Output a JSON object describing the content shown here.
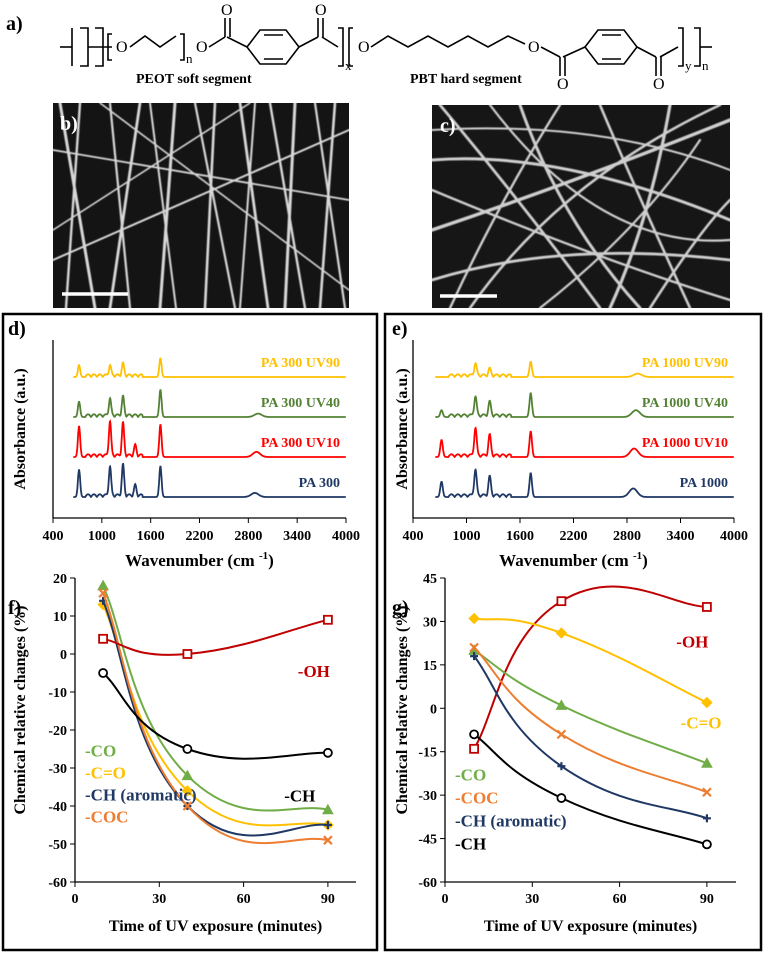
{
  "panel_a": {
    "label": "a)",
    "soft_segment_label": "PEOT soft segment",
    "hard_segment_label": "PBT hard segment",
    "atom_O": "O",
    "sub_n": "n",
    "sub_x": "x",
    "sub_y": "y"
  },
  "panel_b": {
    "label": "b)"
  },
  "panel_c": {
    "label": "c)"
  },
  "chart_data": [
    {
      "id": "d",
      "label": "d)",
      "type": "line",
      "title": "",
      "xlabel": "Wavenumber (cm",
      "xlabel_sup": "-1",
      "xlabel_end": ")",
      "ylabel": "Absorbance (a.u.)",
      "xlim": [
        400,
        4000
      ],
      "xticks": [
        "400",
        "1000",
        "1600",
        "2200",
        "2800",
        "3400",
        "4000"
      ],
      "series": [
        {
          "name": "PA 300 UV90",
          "color": "#FFC000",
          "peaks": [
            [
              720,
              0.35
            ],
            [
              1100,
              0.3
            ],
            [
              1260,
              0.35
            ],
            [
              1720,
              0.55
            ]
          ]
        },
        {
          "name": "PA 300 UV40",
          "color": "#548235",
          "peaks": [
            [
              720,
              0.45
            ],
            [
              1100,
              0.5
            ],
            [
              1260,
              0.55
            ],
            [
              1720,
              0.8
            ],
            [
              2920,
              0.1
            ]
          ]
        },
        {
          "name": "PA 300 UV10",
          "color": "#FF0000",
          "peaks": [
            [
              720,
              0.9
            ],
            [
              1100,
              1.0
            ],
            [
              1260,
              0.95
            ],
            [
              1410,
              0.3
            ],
            [
              1720,
              0.95
            ],
            [
              2900,
              0.15
            ]
          ]
        },
        {
          "name": "PA 300",
          "color": "#1F3864",
          "peaks": [
            [
              720,
              0.8
            ],
            [
              1100,
              0.85
            ],
            [
              1260,
              0.9
            ],
            [
              1410,
              0.3
            ],
            [
              1720,
              0.9
            ],
            [
              2880,
              0.12
            ]
          ]
        }
      ]
    },
    {
      "id": "e",
      "label": "e)",
      "type": "line",
      "title": "",
      "xlabel": "Wavenumber (cm",
      "xlabel_sup": "-1",
      "xlabel_end": ")",
      "ylabel": "Absorbance (a.u.)",
      "xlim": [
        400,
        4000
      ],
      "xticks": [
        "400",
        "1000",
        "1600",
        "2200",
        "2800",
        "3400",
        "4000"
      ],
      "series": [
        {
          "name": "PA 1000 UV90",
          "color": "#FFC000",
          "peaks": [
            [
              1100,
              0.35
            ],
            [
              1260,
              0.2
            ],
            [
              1720,
              0.45
            ],
            [
              2920,
              0.1
            ]
          ]
        },
        {
          "name": "PA 1000 UV40",
          "color": "#548235",
          "peaks": [
            [
              720,
              0.2
            ],
            [
              1100,
              0.55
            ],
            [
              1260,
              0.4
            ],
            [
              1720,
              0.7
            ],
            [
              2900,
              0.2
            ]
          ]
        },
        {
          "name": "PA 1000 UV10",
          "color": "#FF0000",
          "peaks": [
            [
              720,
              0.5
            ],
            [
              1100,
              0.8
            ],
            [
              1260,
              0.6
            ],
            [
              1720,
              0.75
            ],
            [
              2880,
              0.25
            ]
          ]
        },
        {
          "name": "PA 1000",
          "color": "#1F3864",
          "peaks": [
            [
              720,
              0.45
            ],
            [
              1100,
              0.75
            ],
            [
              1260,
              0.55
            ],
            [
              1720,
              0.7
            ],
            [
              2870,
              0.25
            ]
          ]
        }
      ]
    },
    {
      "id": "f",
      "label": "f)",
      "type": "line",
      "xlabel": "Time of UV exposure (minutes)",
      "ylabel": "Chemical relative changes (%)",
      "xlim": [
        0,
        100
      ],
      "ylim": [
        -60,
        20
      ],
      "xticks": [
        0,
        30,
        60,
        90
      ],
      "yticks": [
        -60,
        -50,
        -40,
        -30,
        -20,
        -10,
        0,
        10,
        20
      ],
      "x": [
        10,
        40,
        90
      ],
      "series": [
        {
          "name": "-CO",
          "color": "#70AD47",
          "marker": "triangle",
          "values": [
            18,
            -32,
            -41
          ]
        },
        {
          "name": "-C=O",
          "color": "#FFC000",
          "marker": "diamond",
          "values": [
            13,
            -36,
            -45
          ]
        },
        {
          "name": "-CH (aromatic)",
          "color": "#1F3864",
          "marker": "plus",
          "values": [
            14,
            -40,
            -45
          ]
        },
        {
          "name": "-COC",
          "color": "#ED7D31",
          "marker": "x",
          "values": [
            16,
            -40,
            -49
          ]
        },
        {
          "name": "-OH",
          "color": "#C00000",
          "marker": "square",
          "values": [
            4,
            0,
            9
          ]
        },
        {
          "name": "-CH",
          "color": "#000000",
          "marker": "circle",
          "values": [
            -5,
            -25,
            -26
          ]
        }
      ],
      "annotations": [
        "-OH",
        "-CH"
      ],
      "legend": [
        "-CO",
        "-C=O",
        "-CH (aromatic)",
        "-COC"
      ]
    },
    {
      "id": "g",
      "label": "g)",
      "type": "line",
      "xlabel": "Time of UV exposure (minutes)",
      "ylabel": "Chemical relative changes (%)",
      "xlim": [
        0,
        100
      ],
      "ylim": [
        -60,
        45
      ],
      "xticks": [
        0,
        30,
        60,
        90
      ],
      "yticks": [
        -60,
        -45,
        -30,
        -15,
        0,
        15,
        30,
        45
      ],
      "x": [
        10,
        40,
        90
      ],
      "series": [
        {
          "name": "-OH",
          "color": "#C00000",
          "marker": "square",
          "values": [
            -14,
            37,
            35
          ]
        },
        {
          "name": "-C=O",
          "color": "#FFC000",
          "marker": "diamond",
          "values": [
            31,
            26,
            2
          ]
        },
        {
          "name": "-CO",
          "color": "#70AD47",
          "marker": "triangle",
          "values": [
            20,
            1,
            -19
          ]
        },
        {
          "name": "-COC",
          "color": "#ED7D31",
          "marker": "x",
          "values": [
            21,
            -9,
            -29
          ]
        },
        {
          "name": "-CH (aromatic)",
          "color": "#1F3864",
          "marker": "plus",
          "values": [
            18,
            -20,
            -38
          ]
        },
        {
          "name": "-CH",
          "color": "#000000",
          "marker": "circle",
          "values": [
            -9,
            -31,
            -47
          ]
        }
      ],
      "annotations": [
        "-OH",
        "-C=O"
      ],
      "legend": [
        "-CO",
        "-COC",
        "-CH (aromatic)",
        "-CH"
      ]
    }
  ]
}
